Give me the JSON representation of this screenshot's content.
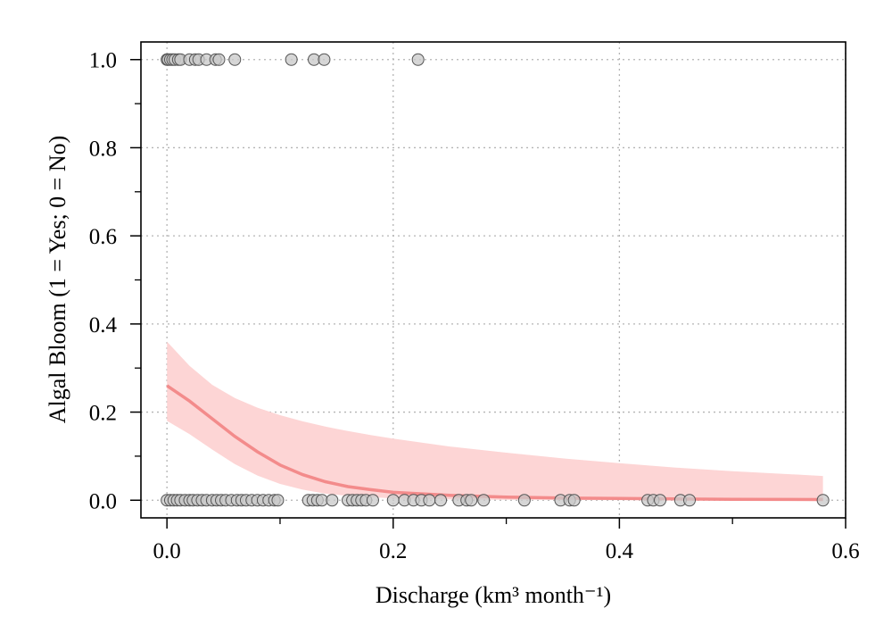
{
  "chart_data": {
    "type": "scatter",
    "xlabel": "Discharge (km³ month⁻¹)",
    "ylabel": "Algal Bloom (1 = Yes; 0 = No)",
    "xlim": [
      -0.023,
      0.6
    ],
    "ylim": [
      -0.04,
      1.04
    ],
    "x_ticks": [
      0.0,
      0.2,
      0.4,
      0.6
    ],
    "x_tick_labels": [
      "0.0",
      "0.2",
      "0.4",
      "0.6"
    ],
    "x_minor_ticks": [
      0.1,
      0.3,
      0.5
    ],
    "y_ticks": [
      0.0,
      0.2,
      0.4,
      0.6,
      0.8,
      1.0
    ],
    "y_tick_labels": [
      "0.0",
      "0.2",
      "0.4",
      "0.6",
      "0.8",
      "1.0"
    ],
    "y_minor_ticks": [
      0.1,
      0.3,
      0.5,
      0.7,
      0.9
    ],
    "grid": true,
    "colors": {
      "point_fill": "#c8c8c8",
      "point_stroke": "#555555",
      "fit_line": "#f38b8b",
      "ci_band": "#fdd5d5",
      "grid": "#b4b4b4"
    },
    "series": [
      {
        "y": 1,
        "x": [
          0.0,
          0.001,
          0.003,
          0.005,
          0.007,
          0.01,
          0.012,
          0.02,
          0.025,
          0.028,
          0.035,
          0.043,
          0.046,
          0.06,
          0.11,
          0.13,
          0.139,
          0.222
        ]
      },
      {
        "y": 0,
        "x": [
          0.0,
          0.003,
          0.006,
          0.009,
          0.012,
          0.016,
          0.02,
          0.023,
          0.027,
          0.031,
          0.035,
          0.04,
          0.044,
          0.048,
          0.052,
          0.057,
          0.062,
          0.066,
          0.07,
          0.075,
          0.08,
          0.085,
          0.09,
          0.095,
          0.098,
          0.125,
          0.129,
          0.133,
          0.137,
          0.146,
          0.16,
          0.164,
          0.168,
          0.172,
          0.176,
          0.182,
          0.2,
          0.21,
          0.218,
          0.225,
          0.232,
          0.242,
          0.258,
          0.265,
          0.269,
          0.28,
          0.316,
          0.348,
          0.356,
          0.36,
          0.425,
          0.43,
          0.436,
          0.454,
          0.462,
          0.58
        ]
      }
    ],
    "fit": {
      "x": [
        0.0,
        0.02,
        0.04,
        0.06,
        0.08,
        0.1,
        0.12,
        0.14,
        0.16,
        0.18,
        0.2,
        0.25,
        0.3,
        0.35,
        0.4,
        0.45,
        0.5,
        0.58
      ],
      "y": [
        0.26,
        0.225,
        0.185,
        0.145,
        0.11,
        0.08,
        0.058,
        0.042,
        0.031,
        0.024,
        0.018,
        0.011,
        0.007,
        0.005,
        0.004,
        0.003,
        0.002,
        0.0015
      ],
      "upper": [
        0.36,
        0.305,
        0.262,
        0.232,
        0.21,
        0.193,
        0.179,
        0.167,
        0.157,
        0.148,
        0.14,
        0.122,
        0.108,
        0.095,
        0.084,
        0.074,
        0.066,
        0.055
      ],
      "lower": [
        0.18,
        0.15,
        0.115,
        0.082,
        0.056,
        0.037,
        0.024,
        0.015,
        0.01,
        0.007,
        0.004,
        0.002,
        0.001,
        0.0005,
        0.0003,
        0.0002,
        0.0001,
        0.0001
      ]
    }
  }
}
